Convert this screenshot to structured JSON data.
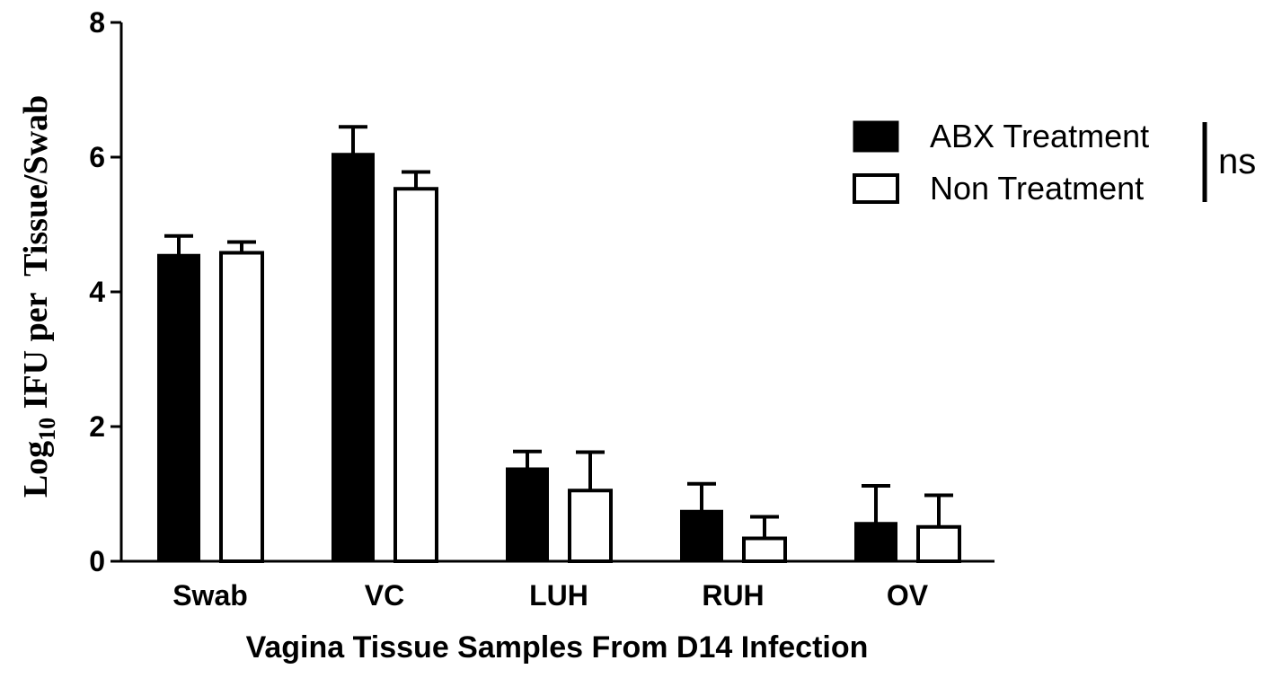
{
  "chart_data": {
    "type": "bar",
    "categories": [
      "Swab",
      "VC",
      "LUH",
      "RUH",
      "OV"
    ],
    "series": [
      {
        "name": "ABX Treatment",
        "color": "#000000",
        "values": [
          4.55,
          6.05,
          1.38,
          0.75,
          0.57
        ],
        "error": [
          0.28,
          0.4,
          0.25,
          0.4,
          0.55
        ]
      },
      {
        "name": "Non Treatment",
        "color": "#ffffff",
        "values": [
          4.58,
          5.53,
          1.05,
          0.34,
          0.51
        ],
        "error": [
          0.16,
          0.25,
          0.57,
          0.32,
          0.47
        ]
      }
    ],
    "ylim": [
      0,
      8
    ],
    "yticks": [
      0,
      2,
      4,
      6,
      8
    ],
    "xlabel": "Vagina Tissue Samples From D14 Infection",
    "ylabel_main": "Log",
    "ylabel_sub": "10",
    "ylabel_rest": " IFU per  Tissue/Swab",
    "significance": "ns",
    "legend_position": "top-right"
  }
}
